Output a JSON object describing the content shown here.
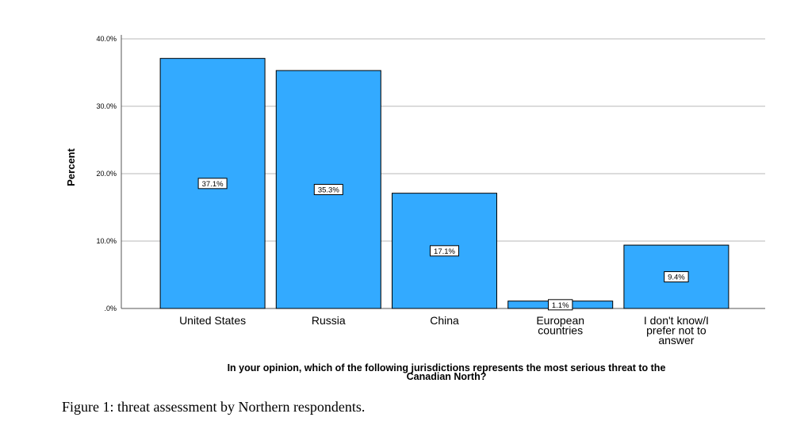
{
  "chart_data": {
    "type": "bar",
    "categories": [
      "United States",
      "Russia",
      "China",
      "European countries",
      "I don't know/I prefer not to answer"
    ],
    "category_lines": [
      [
        "United States"
      ],
      [
        "Russia"
      ],
      [
        "China"
      ],
      [
        "European",
        "countries"
      ],
      [
        "I don't know/I",
        "prefer not to",
        "answer"
      ]
    ],
    "values": [
      37.1,
      35.3,
      17.1,
      1.1,
      9.4
    ],
    "data_labels": [
      "37.1%",
      "35.3%",
      "17.1%",
      "1.1%",
      "9.4%"
    ],
    "ylabel": "Percent",
    "xlabel_lines": [
      "In your opinion, which of the following jurisdictions represents the most serious threat to the",
      "Canadian North?"
    ],
    "ylim": [
      0,
      40
    ],
    "yticks": [
      0,
      10,
      20,
      30,
      40
    ],
    "ytick_labels": [
      ".0%",
      "10.0%",
      "20.0%",
      "30.0%",
      "40.0%"
    ],
    "grid": true,
    "bar_color": "#33aaff",
    "bar_edge_color": "#000000"
  },
  "caption": "Figure 1: threat assessment by Northern respondents."
}
